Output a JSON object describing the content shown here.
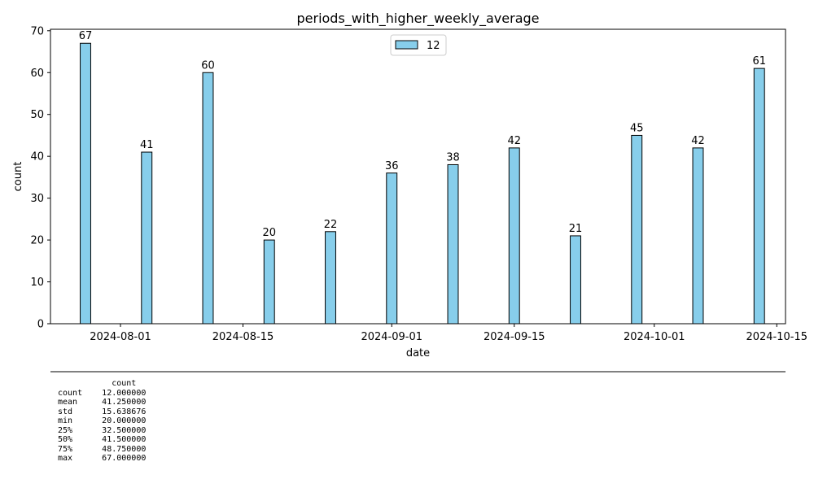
{
  "chart_data": {
    "type": "bar",
    "title": "periods_with_higher_weekly_average",
    "xlabel": "date",
    "ylabel": "count",
    "x": [
      "2024-07-28",
      "2024-08-04",
      "2024-08-11",
      "2024-08-18",
      "2024-08-25",
      "2024-09-01",
      "2024-09-08",
      "2024-09-15",
      "2024-09-22",
      "2024-09-29",
      "2024-10-06",
      "2024-10-13"
    ],
    "values": [
      67,
      41,
      60,
      20,
      22,
      36,
      38,
      42,
      21,
      45,
      42,
      61
    ],
    "series": [
      {
        "name": "12",
        "values": [
          67,
          41,
          60,
          20,
          22,
          36,
          38,
          42,
          21,
          45,
          42,
          61
        ]
      }
    ],
    "xlim": [
      "2024-07-24",
      "2024-10-16"
    ],
    "ylim": [
      0,
      70.35
    ],
    "yticks": [
      0,
      10,
      20,
      30,
      40,
      50,
      60,
      70
    ],
    "xticks": [
      "2024-08-01",
      "2024-08-15",
      "2024-09-01",
      "2024-09-15",
      "2024-10-01",
      "2024-10-15"
    ],
    "grid": false,
    "legend_position": "top-center",
    "bar_color": "#87ceeb",
    "edge_color": "#000000"
  },
  "stats_table": {
    "columns": [
      "count"
    ],
    "rows": [
      {
        "label": "count",
        "value": "12.000000"
      },
      {
        "label": "mean",
        "value": "41.250000"
      },
      {
        "label": "std",
        "value": "15.638676"
      },
      {
        "label": "min",
        "value": "20.000000"
      },
      {
        "label": "25%",
        "value": "32.500000"
      },
      {
        "label": "50%",
        "value": "41.500000"
      },
      {
        "label": "75%",
        "value": "48.750000"
      },
      {
        "label": "max",
        "value": "67.000000"
      }
    ]
  }
}
